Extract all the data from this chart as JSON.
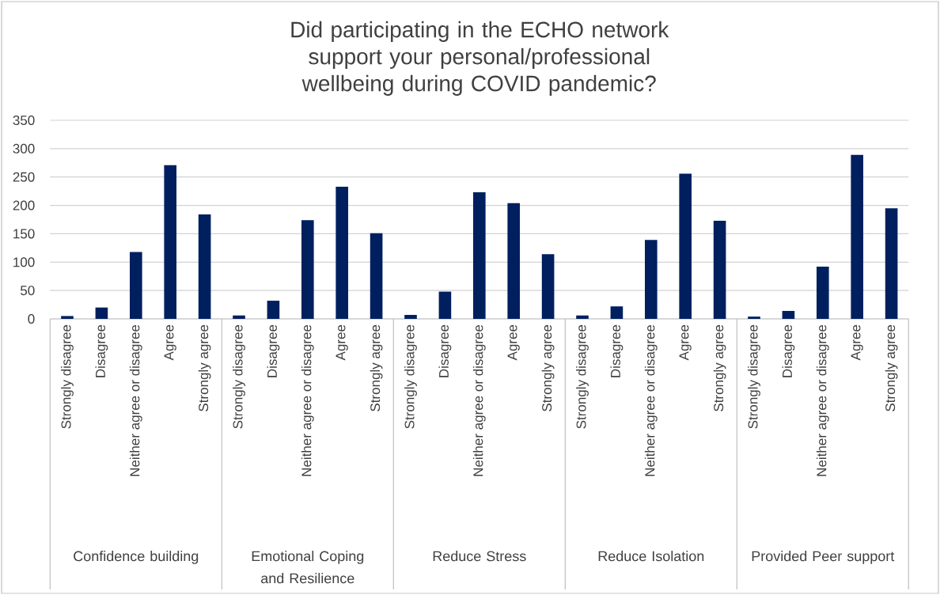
{
  "chart_data": {
    "type": "bar",
    "title": "Did participating in the ECHO network support your personal/professional wellbeing during COVID pandemic?",
    "categories": [
      "Strongly disagree",
      "Disagree",
      "Neither agree or disagree",
      "Agree",
      "Strongly agree",
      "Strongly disagree",
      "Disagree",
      "Neither agree or disagree",
      "Agree",
      "Strongly agree",
      "Strongly disagree",
      "Disagree",
      "Neither agree or disagree",
      "Agree",
      "Strongly agree",
      "Strongly disagree",
      "Disagree",
      "Neither agree or disagree",
      "Agree",
      "Strongly agree",
      "Strongly disagree",
      "Disagree",
      "Neither agree or disagree",
      "Agree",
      "Strongly agree"
    ],
    "values": [
      5,
      20,
      118,
      271,
      184,
      6,
      32,
      174,
      233,
      151,
      7,
      48,
      223,
      204,
      114,
      6,
      22,
      139,
      256,
      173,
      4,
      14,
      92,
      289,
      195
    ],
    "color": "#001f5f",
    "annotations": [
      "Confidence building",
      "Emotional Coping and Resilience",
      "Reduce Stress",
      "Reduce Isolation",
      "Provided Peer support"
    ],
    "ylim": [
      0,
      350
    ],
    "yticks": [
      0,
      50,
      100,
      150,
      200,
      250,
      300,
      350
    ],
    "grid": "y"
  }
}
